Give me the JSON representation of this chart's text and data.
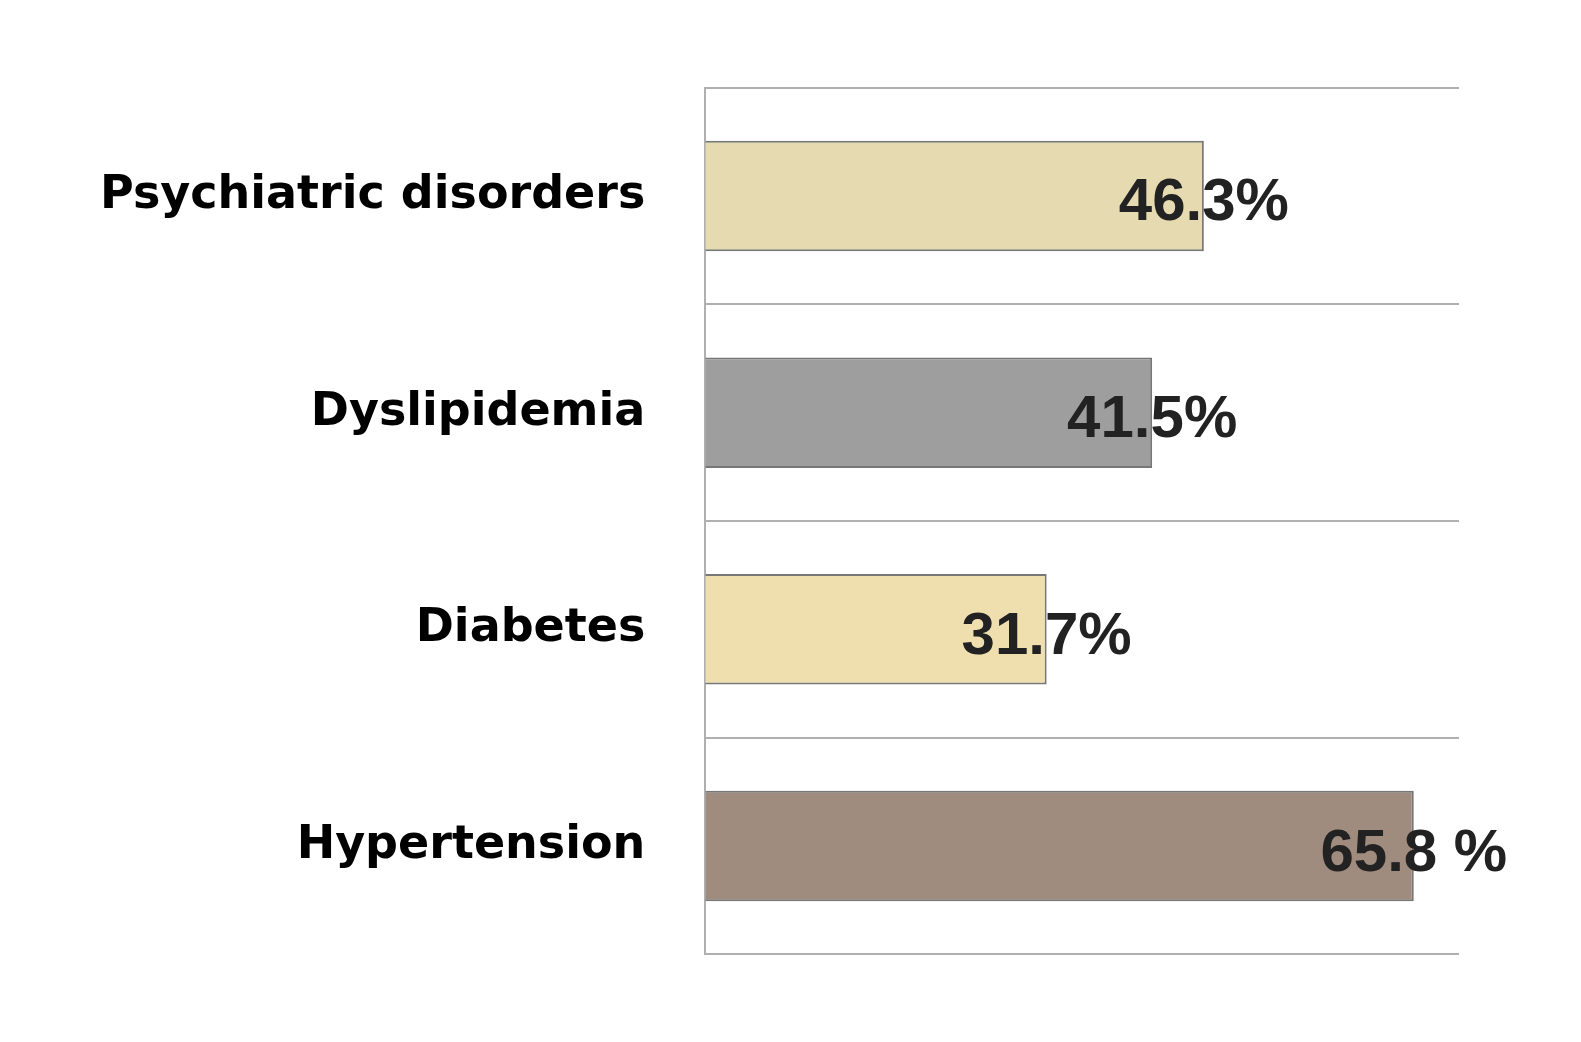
{
  "chart_data": {
    "type": "bar",
    "orientation": "horizontal",
    "categories": [
      "Psychiatric disorders",
      "Dyslipidemia",
      "Diabetes",
      "Hypertension"
    ],
    "values": [
      46.3,
      41.5,
      31.7,
      65.8
    ],
    "colors": [
      "#e6dab0",
      "#9e9e9e",
      "#f0dfae",
      "#a08c7e"
    ],
    "value_labels": [
      "46.3%",
      "41.5%",
      "31.7%",
      "65.8 %"
    ],
    "xlim": [
      0,
      70
    ],
    "tick_labels": "y",
    "grid": "y",
    "legend": false
  }
}
